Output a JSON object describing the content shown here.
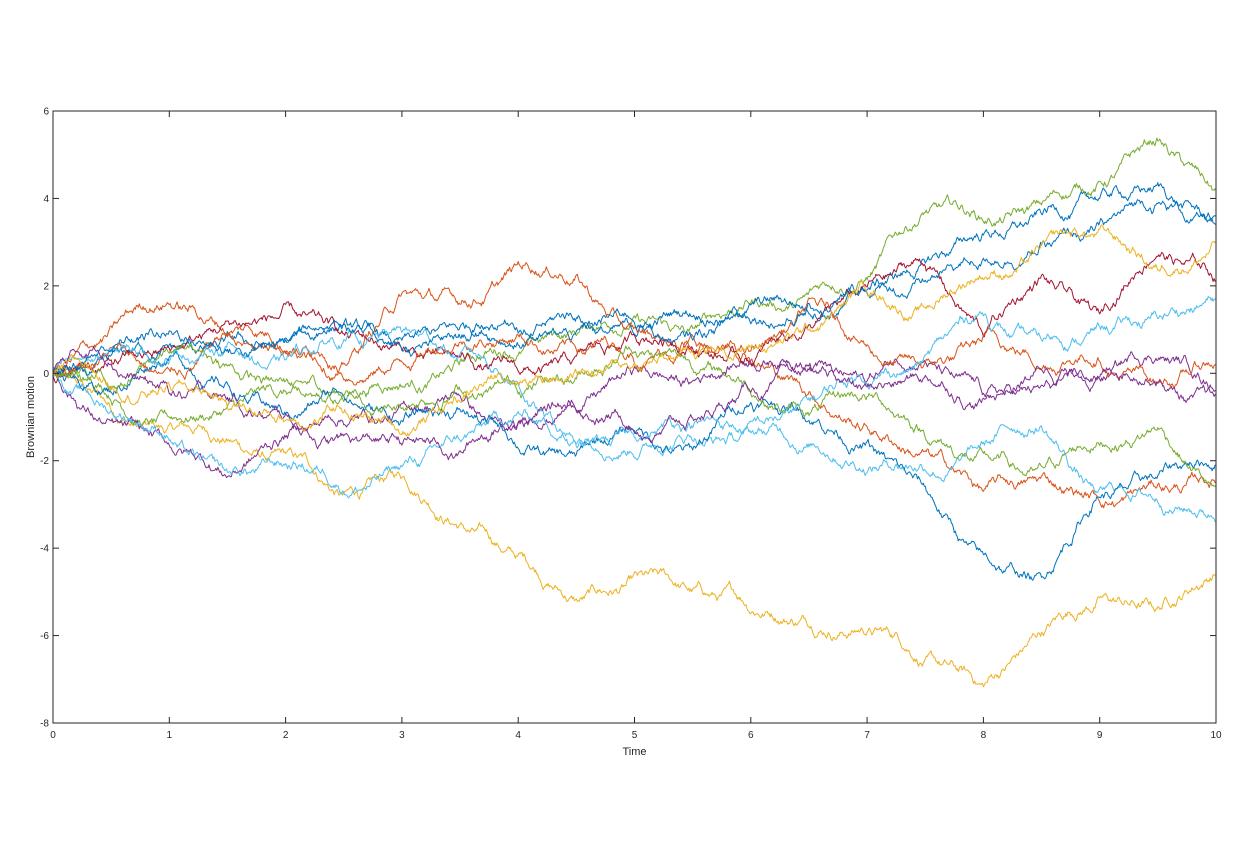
{
  "chart_data": {
    "type": "line",
    "title": "",
    "xlabel": "Time",
    "ylabel": "Brownian motion",
    "xlim": [
      0,
      10
    ],
    "ylim": [
      -8,
      6
    ],
    "xticks": [
      0,
      1,
      2,
      3,
      4,
      5,
      6,
      7,
      8,
      9,
      10
    ],
    "yticks": [
      -8,
      -6,
      -4,
      -2,
      0,
      2,
      4,
      6
    ],
    "xtick_labels": [
      "0",
      "1",
      "2",
      "3",
      "4",
      "5",
      "6",
      "7",
      "8",
      "9",
      "10"
    ],
    "ytick_labels": [
      "-8",
      "-6",
      "-4",
      "-2",
      "0",
      "2",
      "4",
      "6"
    ],
    "grid": false,
    "legend": "none",
    "x": [
      0,
      0.5,
      1,
      1.5,
      2,
      2.5,
      3,
      3.5,
      4,
      4.5,
      5,
      5.5,
      6,
      6.5,
      7,
      7.5,
      8,
      8.5,
      9,
      9.5,
      10
    ],
    "series": [
      {
        "color": "#EDB120",
        "values": [
          0,
          -0.8,
          -1.2,
          -1.5,
          -1.8,
          -2.8,
          -2.4,
          -3.5,
          -4.2,
          -5.2,
          -4.6,
          -5.0,
          -5.5,
          -5.8,
          -6.0,
          -6.6,
          -7.1,
          -6.0,
          -5.1,
          -5.4,
          -4.6
        ]
      },
      {
        "color": "#77AC30",
        "values": [
          0,
          -0.6,
          -1.0,
          -0.8,
          -0.4,
          -0.6,
          -0.3,
          0.2,
          0.4,
          0.9,
          1.3,
          1.1,
          1.6,
          1.8,
          2.2,
          3.7,
          3.5,
          3.9,
          4.4,
          5.4,
          4.2
        ]
      },
      {
        "color": "#0072BD",
        "values": [
          0,
          0.4,
          0.6,
          0.9,
          0.7,
          1.1,
          0.8,
          1.0,
          0.7,
          1.2,
          0.9,
          1.3,
          1.6,
          1.4,
          1.9,
          2.6,
          3.2,
          3.7,
          4.0,
          4.3,
          3.4
        ]
      },
      {
        "color": "#D95319",
        "values": [
          0,
          1.1,
          1.6,
          0.9,
          0.5,
          0.2,
          1.8,
          1.6,
          2.5,
          2.2,
          1.0,
          0.5,
          0.3,
          -0.5,
          -1.2,
          -1.8,
          -2.7,
          -2.4,
          -2.9,
          -2.6,
          -2.5
        ]
      },
      {
        "color": "#7E2F8E",
        "values": [
          0,
          -1.1,
          -1.6,
          -2.4,
          -1.4,
          -1.1,
          -0.7,
          -0.5,
          -1.2,
          -0.8,
          0.1,
          -0.2,
          0.3,
          0.1,
          -0.2,
          0.3,
          -0.5,
          -0.3,
          -0.1,
          0.3,
          -0.5
        ]
      },
      {
        "color": "#4DBEEE",
        "values": [
          0,
          -0.9,
          -1.5,
          -2.2,
          -2.1,
          -2.7,
          -2.1,
          -1.5,
          -0.9,
          -1.6,
          -1.9,
          -1.5,
          -1.3,
          -1.7,
          -2.3,
          -2.2,
          -1.6,
          -1.2,
          -2.7,
          -2.9,
          -3.4
        ]
      },
      {
        "color": "#A2142F",
        "values": [
          0,
          0.3,
          0.6,
          1.2,
          1.6,
          0.9,
          0.6,
          0.4,
          0.1,
          0.4,
          0.9,
          0.6,
          0.2,
          1.1,
          2.0,
          2.5,
          0.9,
          2.2,
          1.4,
          2.7,
          2.1
        ]
      },
      {
        "color": "#0072BD",
        "values": [
          0,
          -0.4,
          0.3,
          -0.2,
          -0.9,
          -0.5,
          -1.1,
          -0.8,
          -1.7,
          -1.9,
          -1.3,
          -1.7,
          -0.7,
          -1.1,
          -1.6,
          -2.6,
          -4.1,
          -4.6,
          -2.8,
          -2.4,
          -2.1
        ]
      },
      {
        "color": "#D95319",
        "values": [
          0,
          0.6,
          0.1,
          0.9,
          0.5,
          -0.1,
          0.3,
          0.7,
          0.9,
          0.6,
          0.3,
          0.9,
          0.5,
          1.7,
          0.6,
          0.2,
          0.8,
          0.1,
          0.3,
          -0.2,
          0.2
        ]
      },
      {
        "color": "#77AC30",
        "values": [
          0,
          -0.3,
          0.5,
          0.2,
          -0.2,
          -0.5,
          -0.8,
          -0.3,
          -0.4,
          -0.1,
          0.5,
          0.1,
          -0.4,
          -0.9,
          -0.6,
          -1.4,
          -1.8,
          -2.1,
          -1.6,
          -1.3,
          -2.6
        ]
      },
      {
        "color": "#4DBEEE",
        "values": [
          0,
          0.5,
          0.2,
          0.6,
          0.3,
          0.7,
          1.0,
          0.4,
          -0.2,
          -1.6,
          -1.4,
          -1.2,
          -1.1,
          -0.6,
          -0.2,
          0.4,
          1.4,
          0.8,
          1.1,
          1.3,
          1.7
        ]
      },
      {
        "color": "#7E2F8E",
        "values": [
          0,
          0.2,
          -0.4,
          -0.6,
          -1.0,
          -1.4,
          -1.6,
          -1.8,
          -1.2,
          -0.8,
          -1.3,
          -1.0,
          -0.4,
          0.2,
          -0.3,
          -0.1,
          -0.6,
          0.1,
          -0.1,
          -0.2,
          -0.4
        ]
      },
      {
        "color": "#0072BD",
        "values": [
          0,
          0.5,
          0.9,
          0.5,
          0.8,
          1.1,
          0.6,
          0.9,
          1.0,
          0.9,
          1.2,
          0.8,
          1.2,
          1.6,
          1.9,
          2.1,
          2.6,
          3.0,
          3.4,
          3.9,
          3.6
        ]
      },
      {
        "color": "#EDB120",
        "values": [
          0,
          -0.4,
          -0.2,
          -0.7,
          -1.1,
          -0.9,
          -1.4,
          -0.6,
          -0.2,
          0.1,
          0.2,
          0.5,
          0.6,
          1.0,
          1.9,
          1.5,
          2.2,
          2.9,
          3.3,
          2.4,
          3.0
        ]
      }
    ]
  }
}
